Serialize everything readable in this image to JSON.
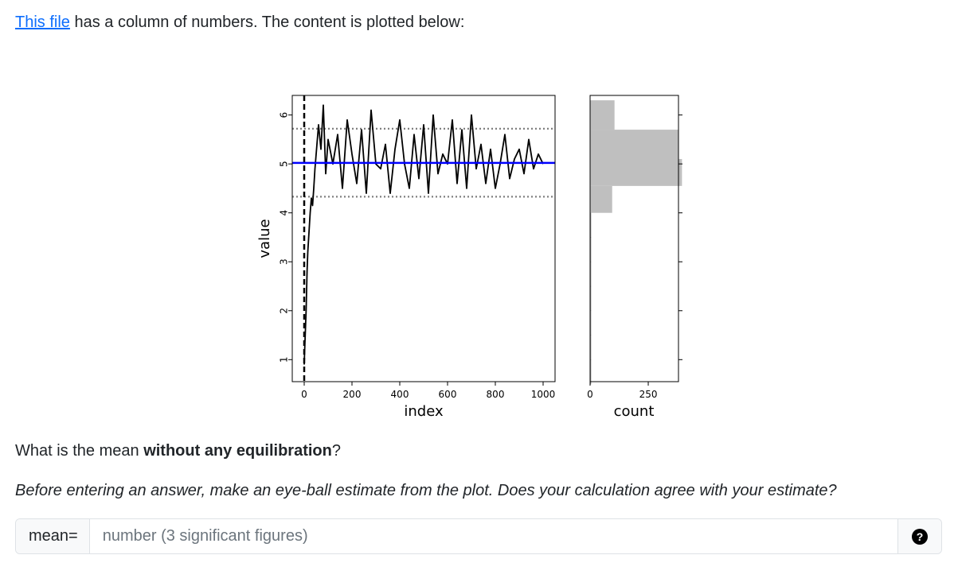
{
  "intro": {
    "link_text": "This file",
    "rest_text": " has a column of numbers. The content is plotted below:"
  },
  "question": {
    "before": "What is the mean ",
    "bold": "without any equilibration",
    "after": "?"
  },
  "hint": "Before entering an answer, make an eye-ball estimate from the plot. Does your calculation agree with your estimate?",
  "answer": {
    "label": "mean=",
    "placeholder": "number (3 significant figures)",
    "value": "",
    "help_symbol": "?"
  },
  "colors": {
    "link": "#0d6efd",
    "mean_line": "#0000ff",
    "trace": "#000000",
    "histogram": "#bfbfbf",
    "band": "#808080"
  },
  "chart_data": [
    {
      "type": "line",
      "xlabel": "index",
      "ylabel": "value",
      "xlim": [
        -50,
        1050
      ],
      "ylim": [
        0.55,
        6.4
      ],
      "xticks": [
        0,
        200,
        400,
        600,
        800,
        1000
      ],
      "yticks": [
        1,
        2,
        3,
        4,
        5,
        6
      ],
      "series": [
        {
          "x": [
            0,
            2,
            5,
            8,
            10,
            12,
            15,
            20,
            25,
            30,
            35,
            40,
            45,
            50,
            60,
            70,
            80,
            90,
            100,
            120,
            140,
            160,
            180,
            200,
            220,
            240,
            260,
            280,
            300,
            320,
            340,
            360,
            380,
            400,
            420,
            440,
            460,
            480,
            500,
            520,
            540,
            560,
            580,
            600,
            620,
            640,
            660,
            680,
            700,
            720,
            740,
            760,
            780,
            800,
            820,
            840,
            860,
            880,
            900,
            920,
            940,
            960,
            980,
            1000
          ],
          "y": [
            0.9,
            1.2,
            1.6,
            2.0,
            2.4,
            2.8,
            3.2,
            3.6,
            4.0,
            4.3,
            4.15,
            4.5,
            4.9,
            5.2,
            5.8,
            5.3,
            6.2,
            4.8,
            5.5,
            5.0,
            5.6,
            4.5,
            5.9,
            5.2,
            4.6,
            5.7,
            4.4,
            6.1,
            5.0,
            4.9,
            5.4,
            4.4,
            5.3,
            5.9,
            5.0,
            4.5,
            5.6,
            4.7,
            5.8,
            4.4,
            6.0,
            4.8,
            5.2,
            5.0,
            5.9,
            4.6,
            5.7,
            4.5,
            6.0,
            4.9,
            5.4,
            4.6,
            5.3,
            4.5,
            5.0,
            5.6,
            4.7,
            5.1,
            5.3,
            4.8,
            5.5,
            4.9,
            5.2,
            5.0
          ]
        }
      ],
      "mean_line_y": 5.02,
      "band_lines_y": [
        5.72,
        4.33
      ],
      "equilibration_x": 0
    },
    {
      "type": "bar",
      "orientation": "horizontal",
      "xlabel": "count",
      "xlim": [
        0,
        380
      ],
      "xticks": [
        0,
        250
      ],
      "bins": [
        {
          "lower": 0.5,
          "upper": 1.0,
          "count": 3
        },
        {
          "lower": 1.0,
          "upper": 1.5,
          "count": 3
        },
        {
          "lower": 1.5,
          "upper": 2.0,
          "count": 2
        },
        {
          "lower": 2.0,
          "upper": 2.5,
          "count": 2
        },
        {
          "lower": 2.5,
          "upper": 3.0,
          "count": 2
        },
        {
          "lower": 3.0,
          "upper": 3.5,
          "count": 2
        },
        {
          "lower": 3.5,
          "upper": 4.0,
          "count": 3
        },
        {
          "lower": 4.0,
          "upper": 4.55,
          "count": 95
        },
        {
          "lower": 4.55,
          "upper": 5.1,
          "count": 395
        },
        {
          "lower": 5.1,
          "upper": 5.7,
          "count": 380
        },
        {
          "lower": 5.7,
          "upper": 6.3,
          "count": 105
        }
      ]
    }
  ]
}
